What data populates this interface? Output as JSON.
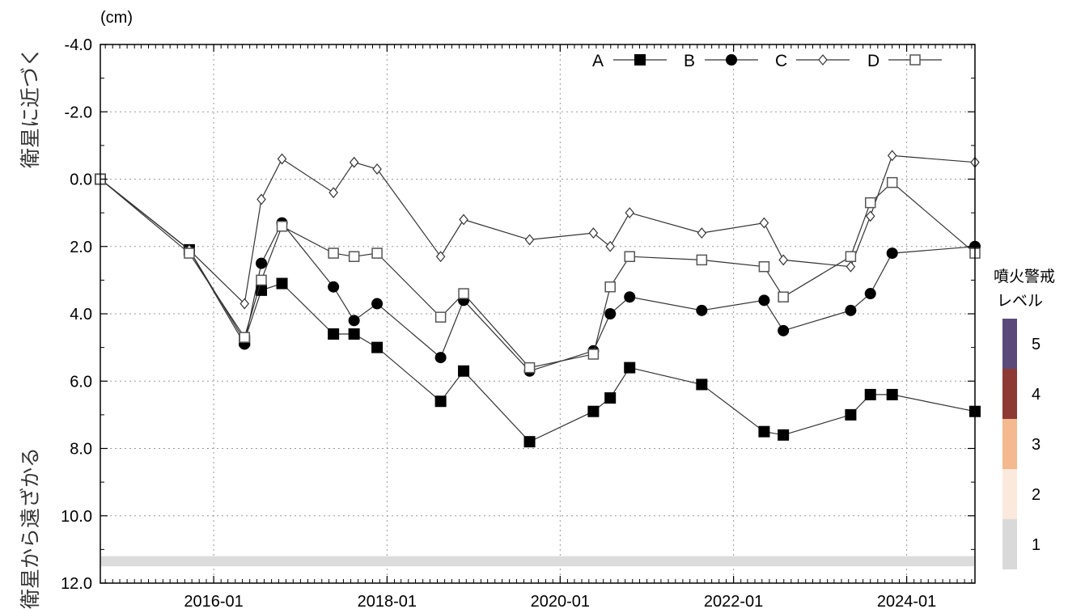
{
  "chart_data": {
    "type": "line",
    "y_unit_label": "(cm)",
    "y_axis_top_label": "衛星に近づく",
    "y_axis_bottom_label": "衛星から遠ざかる",
    "y_inverted": true,
    "ylim": [
      -4.0,
      12.0
    ],
    "y_ticks": [
      "-4.0",
      "-2.0",
      "0.0",
      "2.0",
      "4.0",
      "6.0",
      "8.0",
      "10.0",
      "12.0"
    ],
    "y_tick_values": [
      -4,
      -2,
      0,
      2,
      4,
      6,
      8,
      10,
      12
    ],
    "xlim": [
      "2014-09-10",
      "2024-10-15"
    ],
    "x_ticks": [
      "2016-01",
      "2018-01",
      "2020-01",
      "2022-01",
      "2024-01"
    ],
    "x_tick_dates": [
      "2016-01-01",
      "2018-01-01",
      "2020-01-01",
      "2022-01-01",
      "2024-01-01"
    ],
    "grid": true,
    "legend_position": "top-right",
    "reference_band": {
      "y_from": 11.2,
      "y_to": 11.5,
      "color": "#dcdcdc"
    },
    "series": [
      {
        "name": "A",
        "marker": "filled-square",
        "x": [
          "2014-09-10",
          "2015-09-20",
          "2016-05-10",
          "2016-07-20",
          "2016-10-15",
          "2017-05-20",
          "2017-08-15",
          "2017-11-20",
          "2018-08-15",
          "2018-11-20",
          "2019-08-25",
          "2020-05-20",
          "2020-07-30",
          "2020-10-20",
          "2021-08-20",
          "2022-05-10",
          "2022-07-30",
          "2023-05-10",
          "2023-08-01",
          "2023-11-01",
          "2024-10-15"
        ],
        "values": [
          0.0,
          2.1,
          4.8,
          3.3,
          3.1,
          4.6,
          4.6,
          5.0,
          6.6,
          5.7,
          7.8,
          6.9,
          6.5,
          5.6,
          6.1,
          7.5,
          7.6,
          7.0,
          6.4,
          6.4,
          6.9
        ]
      },
      {
        "name": "B",
        "marker": "filled-circle",
        "x": [
          "2014-09-10",
          "2015-09-20",
          "2016-05-10",
          "2016-07-20",
          "2016-10-15",
          "2017-05-20",
          "2017-08-15",
          "2017-11-20",
          "2018-08-15",
          "2018-11-20",
          "2019-08-25",
          "2020-05-20",
          "2020-07-30",
          "2020-10-20",
          "2021-08-20",
          "2022-05-10",
          "2022-07-30",
          "2023-05-10",
          "2023-08-01",
          "2023-11-01",
          "2024-10-15"
        ],
        "values": [
          0.0,
          2.1,
          4.9,
          2.5,
          1.3,
          3.2,
          4.2,
          3.7,
          5.3,
          3.6,
          5.7,
          5.1,
          4.0,
          3.5,
          3.9,
          3.6,
          4.5,
          3.9,
          3.4,
          2.2,
          2.0
        ]
      },
      {
        "name": "C",
        "marker": "open-diamond",
        "x": [
          "2014-09-10",
          "2015-09-20",
          "2016-05-10",
          "2016-07-20",
          "2016-10-15",
          "2017-05-20",
          "2017-08-15",
          "2017-11-20",
          "2018-08-15",
          "2018-11-20",
          "2019-08-25",
          "2020-05-20",
          "2020-07-30",
          "2020-10-20",
          "2021-08-20",
          "2022-05-10",
          "2022-07-30",
          "2023-05-10",
          "2023-08-01",
          "2023-11-01",
          "2024-10-15"
        ],
        "values": [
          0.0,
          2.1,
          3.7,
          0.6,
          -0.6,
          0.4,
          -0.5,
          -0.3,
          2.3,
          1.2,
          1.8,
          1.6,
          2.0,
          1.0,
          1.6,
          1.3,
          2.4,
          2.6,
          1.1,
          -0.7,
          -0.5
        ]
      },
      {
        "name": "D",
        "marker": "open-square",
        "x": [
          "2014-09-10",
          "2015-09-20",
          "2016-05-10",
          "2016-07-20",
          "2016-10-15",
          "2017-05-20",
          "2017-08-15",
          "2017-11-20",
          "2018-08-15",
          "2018-11-20",
          "2019-08-25",
          "2020-05-20",
          "2020-07-30",
          "2020-10-20",
          "2021-08-20",
          "2022-05-10",
          "2022-07-30",
          "2023-05-10",
          "2023-08-01",
          "2023-11-01",
          "2024-10-15"
        ],
        "values": [
          0.0,
          2.2,
          4.7,
          3.0,
          1.4,
          2.2,
          2.3,
          2.2,
          4.1,
          3.4,
          5.6,
          5.2,
          3.2,
          2.3,
          2.4,
          2.6,
          3.5,
          2.3,
          0.7,
          0.1,
          2.2
        ]
      }
    ]
  },
  "alert_level_legend": {
    "title_line1": "噴火警戒",
    "title_line2": "レベル",
    "levels": [
      {
        "label": "5",
        "color": "#5a4a7a"
      },
      {
        "label": "4",
        "color": "#8e3a34"
      },
      {
        "label": "3",
        "color": "#f4b98e"
      },
      {
        "label": "2",
        "color": "#fae9dc"
      },
      {
        "label": "1",
        "color": "#d9d9d9"
      }
    ]
  }
}
